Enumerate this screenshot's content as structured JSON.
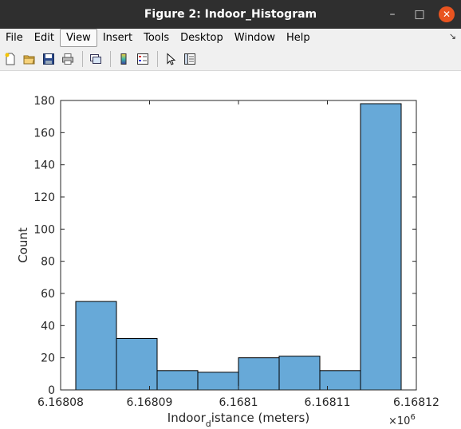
{
  "window": {
    "title": "Figure 2: Indoor_Histogram",
    "minimize_glyph": "–",
    "maximize_glyph": "□",
    "close_glyph": "✕"
  },
  "menu": {
    "items": [
      {
        "label": "File"
      },
      {
        "label": "Edit"
      },
      {
        "label": "View"
      },
      {
        "label": "Insert"
      },
      {
        "label": "Tools"
      },
      {
        "label": "Desktop"
      },
      {
        "label": "Window"
      },
      {
        "label": "Help"
      }
    ],
    "active_index": 2,
    "dock_glyph": "↘"
  },
  "toolbar": {
    "icons": [
      "new-figure-icon",
      "open-folder-icon",
      "save-icon",
      "print-icon",
      "link-plot-icon",
      "colorbar-icon",
      "legend-icon",
      "pointer-icon",
      "property-inspector-icon"
    ]
  },
  "chart_data": {
    "type": "bar",
    "bin_edges": [
      6.16808,
      6.168085,
      6.16809,
      6.168095,
      6.1681,
      6.168105,
      6.16811,
      6.168115,
      6.16812
    ],
    "values": [
      55,
      32,
      12,
      11,
      20,
      21,
      12,
      178
    ],
    "xlabel_main": "Indoor",
    "xlabel_sub": "d",
    "xlabel_rest": "istance (meters)",
    "ylabel": "Count",
    "ylim": [
      0,
      180
    ],
    "xlim": [
      6.16808,
      6.16812
    ],
    "yticks": [
      "0",
      "20",
      "40",
      "60",
      "80",
      "100",
      "120",
      "140",
      "160",
      "180"
    ],
    "xticks": [
      "6.16808",
      "6.16809",
      "6.1681",
      "6.16811",
      "6.16812"
    ],
    "x_exponent_base": "×10",
    "x_exponent_power": "6",
    "bar_color": "#67a9d8",
    "grid": false
  }
}
